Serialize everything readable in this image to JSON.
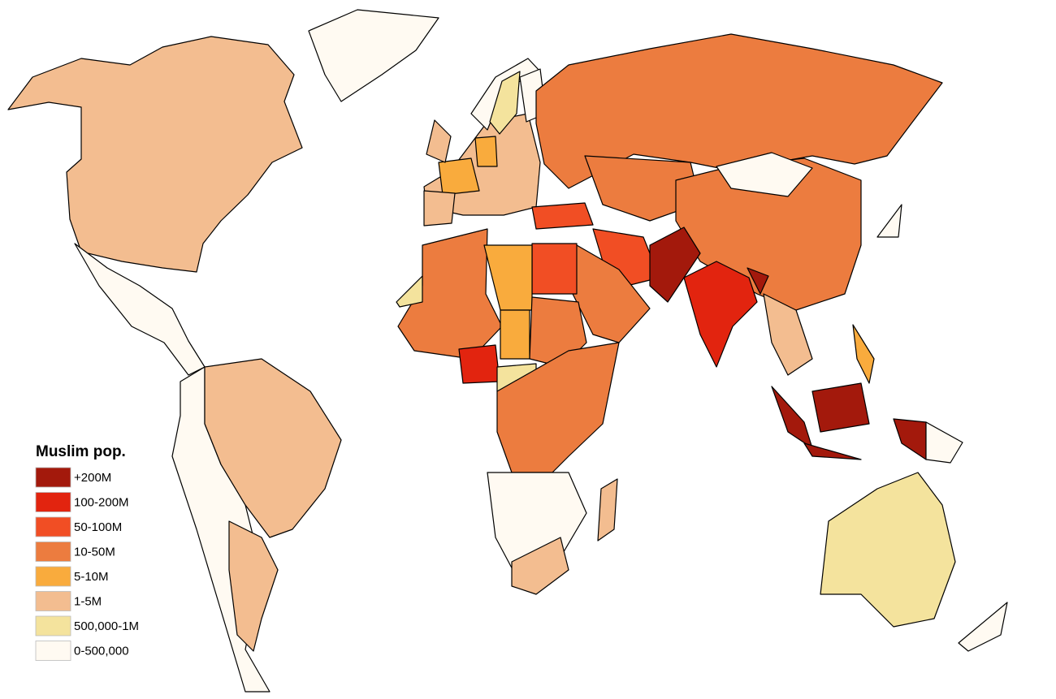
{
  "legend": {
    "title": "Muslim pop.",
    "items": [
      {
        "label": "+200M",
        "color": "#a3190c"
      },
      {
        "label": "100-200M",
        "color": "#e2240f"
      },
      {
        "label": "50-100M",
        "color": "#f14e24"
      },
      {
        "label": "10-50M",
        "color": "#ec7c3f"
      },
      {
        "label": "5-10M",
        "color": "#f9ab3d"
      },
      {
        "label": "1-5M",
        "color": "#f3bd90"
      },
      {
        "label": "500,000-1M",
        "color": "#f4e39d"
      },
      {
        "label": "0-500,000",
        "color": "#fffaf2"
      }
    ]
  }
}
